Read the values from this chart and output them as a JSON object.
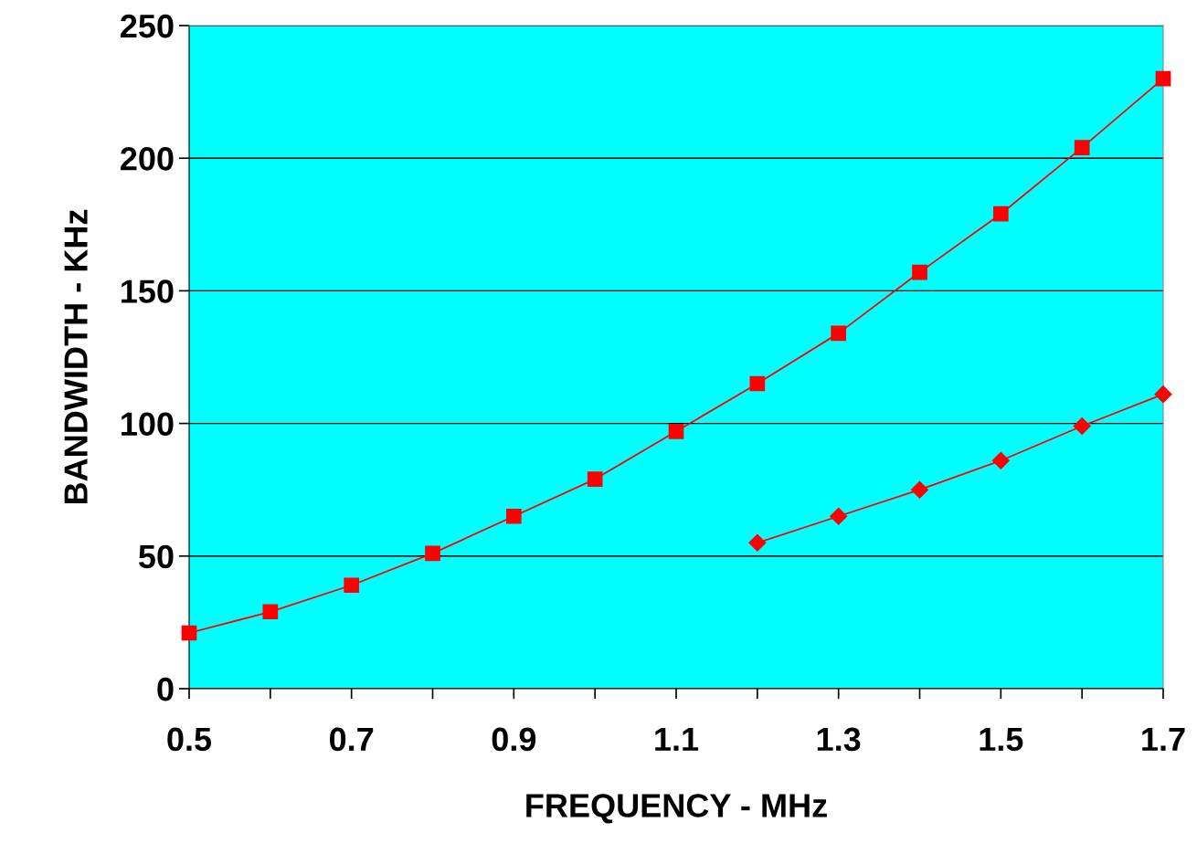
{
  "chart_data": {
    "type": "line",
    "xlabel": "FREQUENCY - MHz",
    "ylabel": "BANDWIDTH - KHz",
    "series": [
      {
        "color": "#ff0000",
        "marker": "square",
        "x": [
          0.5,
          0.6,
          0.7,
          0.8,
          0.9,
          1.0,
          1.1,
          1.2,
          1.3,
          1.4,
          1.5,
          1.6,
          1.7
        ],
        "values": [
          21,
          29,
          39,
          51,
          65,
          79,
          97,
          115,
          134,
          157,
          179,
          204,
          230
        ]
      },
      {
        "color": "#ff0000",
        "marker": "diamond",
        "x": [
          1.2,
          1.3,
          1.4,
          1.5,
          1.6,
          1.7
        ],
        "values": [
          55,
          65,
          75,
          86,
          99,
          111
        ]
      }
    ],
    "xlim": [
      0.5,
      1.7
    ],
    "ylim": [
      0,
      250
    ],
    "xticks": [
      0.5,
      {
        "value": 0.6,
        "label": null
      },
      0.7,
      {
        "value": 0.8,
        "label": null
      },
      0.9,
      {
        "value": 1.0,
        "label": null
      },
      1.1,
      {
        "value": 1.2,
        "label": null
      },
      1.3,
      {
        "value": 1.4,
        "label": null
      },
      1.5,
      {
        "value": 1.6,
        "label": null
      },
      1.7
    ],
    "yticks": [
      0,
      50,
      100,
      150,
      200,
      250
    ],
    "grid": "y",
    "line_style": "solid"
  }
}
